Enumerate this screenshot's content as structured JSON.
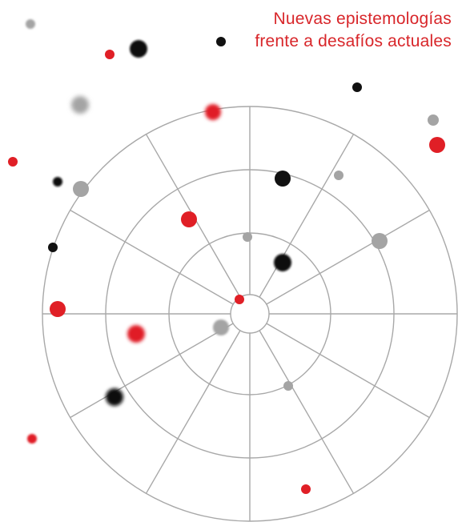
{
  "title": {
    "line1": "Nuevas epistemologías",
    "line2": "frente a desafíos actuales"
  },
  "colors": {
    "accent": "#d8262a",
    "grid": "#a8a8a8",
    "dot_black": "#111111",
    "dot_gray": "#a4a4a4",
    "dot_red": "#e01f26"
  }
}
